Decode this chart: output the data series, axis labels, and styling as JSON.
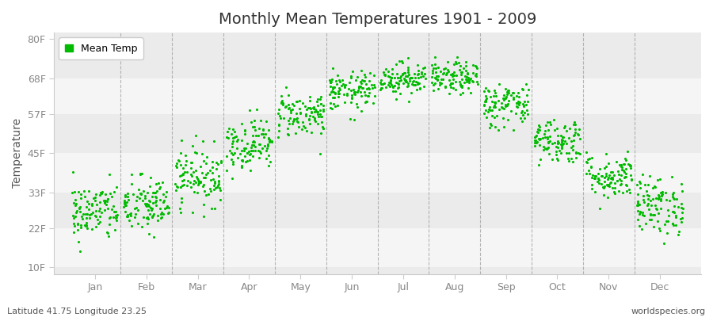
{
  "title": "Monthly Mean Temperatures 1901 - 2009",
  "ylabel": "Temperature",
  "xlabel_bottom_left": "Latitude 41.75 Longitude 23.25",
  "xlabel_bottom_right": "worldspecies.org",
  "yticks": [
    10,
    22,
    33,
    45,
    57,
    68,
    80
  ],
  "ytick_labels": [
    "10F",
    "22F",
    "33F",
    "45F",
    "57F",
    "68F",
    "80F"
  ],
  "months": [
    "Jan",
    "Feb",
    "Mar",
    "Apr",
    "May",
    "Jun",
    "Jul",
    "Aug",
    "Sep",
    "Oct",
    "Nov",
    "Dec"
  ],
  "dot_color": "#00bb00",
  "figure_bg_color": "#ffffff",
  "plot_bg_color": "#ebebeb",
  "stripe_color": "#f5f5f5",
  "legend_label": "Mean Temp",
  "dot_size": 5,
  "num_years": 109,
  "monthly_mean_temps_F": [
    27,
    29,
    38,
    48,
    57,
    64,
    68,
    68,
    60,
    49,
    38,
    29
  ],
  "monthly_std_temps_F": [
    4.5,
    4.5,
    4.5,
    4.0,
    3.5,
    3.0,
    2.5,
    2.5,
    3.5,
    3.5,
    3.5,
    4.5
  ],
  "ylim": [
    8,
    82
  ],
  "xlim": [
    -0.3,
    12.3
  ],
  "seed": 42,
  "vline_color": "#999999",
  "spine_color": "#cccccc",
  "tick_color": "#888888",
  "title_fontsize": 14,
  "axis_label_fontsize": 10,
  "tick_fontsize": 9
}
